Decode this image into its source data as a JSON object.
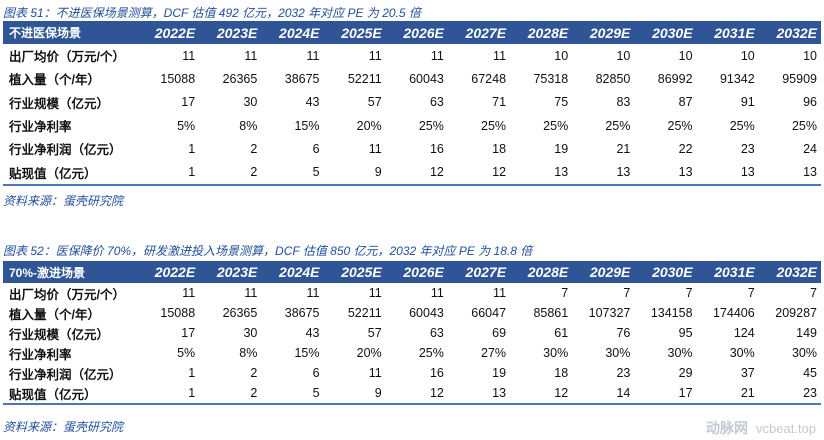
{
  "colors": {
    "header_bg": "#2f5597",
    "caption": "#1f4e9c"
  },
  "years": [
    "2022E",
    "2023E",
    "2024E",
    "2025E",
    "2026E",
    "2027E",
    "2028E",
    "2029E",
    "2030E",
    "2031E",
    "2032E"
  ],
  "table1": {
    "caption": "图表 51：不进医保场景测算，DCF 估值 492 亿元，2032 年对应 PE 为 20.5 倍",
    "scenario": "不进医保场景",
    "rows": [
      {
        "label": "出厂均价（万元/个）",
        "values": [
          "11",
          "11",
          "11",
          "11",
          "11",
          "11",
          "10",
          "10",
          "10",
          "10",
          "10"
        ]
      },
      {
        "label": "植入量（个/年）",
        "values": [
          "15088",
          "26365",
          "38675",
          "52211",
          "60043",
          "67248",
          "75318",
          "82850",
          "86992",
          "91342",
          "95909"
        ]
      },
      {
        "label": "行业规模（亿元）",
        "values": [
          "17",
          "30",
          "43",
          "57",
          "63",
          "71",
          "75",
          "83",
          "87",
          "91",
          "96"
        ]
      },
      {
        "label": "行业净利率",
        "values": [
          "5%",
          "8%",
          "15%",
          "20%",
          "25%",
          "25%",
          "25%",
          "25%",
          "25%",
          "25%",
          "25%"
        ]
      },
      {
        "label": "行业净利润（亿元）",
        "values": [
          "1",
          "2",
          "6",
          "11",
          "16",
          "18",
          "19",
          "21",
          "22",
          "23",
          "24"
        ]
      },
      {
        "label": "贴现值（亿元）",
        "values": [
          "1",
          "2",
          "5",
          "9",
          "12",
          "12",
          "13",
          "13",
          "13",
          "13",
          "13"
        ]
      }
    ],
    "source": "资料来源：蛋壳研究院"
  },
  "table2": {
    "caption": "图表 52：医保降价 70%，研发激进投入场景测算，DCF 估值 850 亿元，2032 年对应 PE 为 18.8 倍",
    "scenario": "70%-激进场景",
    "rows": [
      {
        "label": "出厂均价（万元/个）",
        "values": [
          "11",
          "11",
          "11",
          "11",
          "11",
          "11",
          "7",
          "7",
          "7",
          "7",
          "7"
        ]
      },
      {
        "label": "植入量（个/年）",
        "values": [
          "15088",
          "26365",
          "38675",
          "52211",
          "60043",
          "66047",
          "85861",
          "107327",
          "134158",
          "174406",
          "209287"
        ]
      },
      {
        "label": "行业规模（亿元）",
        "values": [
          "17",
          "30",
          "43",
          "57",
          "63",
          "69",
          "61",
          "76",
          "95",
          "124",
          "149"
        ]
      },
      {
        "label": "行业净利率",
        "values": [
          "5%",
          "8%",
          "15%",
          "20%",
          "25%",
          "27%",
          "30%",
          "30%",
          "30%",
          "30%",
          "30%"
        ]
      },
      {
        "label": "行业净利润（亿元）",
        "values": [
          "1",
          "2",
          "6",
          "11",
          "16",
          "19",
          "18",
          "23",
          "29",
          "37",
          "45"
        ]
      },
      {
        "label": "贴现值（亿元）",
        "values": [
          "1",
          "2",
          "5",
          "9",
          "12",
          "13",
          "12",
          "14",
          "17",
          "21",
          "23"
        ]
      }
    ],
    "source": "资料来源：蛋壳研究院"
  },
  "watermark": {
    "logo": "动脉网",
    "url": "vcbeat.top"
  }
}
